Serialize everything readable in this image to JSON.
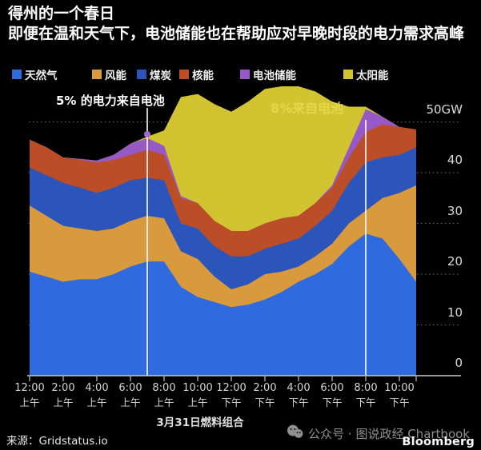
{
  "header": {
    "title": "得州的一个春日",
    "subtitle": "即便在温和天气下，电池储能也在帮助应对早晚时段的电力需求高峰"
  },
  "legend": {
    "items": [
      {
        "label": "天然气",
        "color": "#2f6bdf"
      },
      {
        "label": "风能",
        "color": "#d99a3d"
      },
      {
        "label": "煤炭",
        "color": "#2b55bb"
      },
      {
        "label": "核能",
        "color": "#bb4d27"
      },
      {
        "label": "电池储能",
        "color": "#9659c5"
      },
      {
        "label": "太阳能",
        "color": "#d2c430"
      }
    ]
  },
  "annotations": {
    "morning": "5% 的电力来自电池",
    "evening": "8%来自电池"
  },
  "y_axis": {
    "labels": [
      "50GW",
      "40",
      "30",
      "20",
      "10",
      "0"
    ],
    "values": [
      50,
      40,
      30,
      20,
      10,
      0
    ]
  },
  "x_axis": {
    "tick_labels": [
      {
        "time": "12:00",
        "period": "上午"
      },
      {
        "time": "2:00",
        "period": "上午"
      },
      {
        "time": "4:00",
        "period": "上午"
      },
      {
        "time": "6:00",
        "period": "上午"
      },
      {
        "time": "8:00",
        "period": "上午"
      },
      {
        "time": "10:00",
        "period": "上午"
      },
      {
        "time": "12:00",
        "period": "下午"
      },
      {
        "time": "2:00",
        "period": "下午"
      },
      {
        "time": "4:00",
        "period": "下午"
      },
      {
        "time": "6:00",
        "period": "下午"
      },
      {
        "time": "8:00",
        "period": "下午"
      },
      {
        "time": "10:00",
        "period": "下午"
      }
    ]
  },
  "footer": {
    "source": "来源：Gridstatus.io",
    "wechat": "公众号 · 图说政经 Chartbook",
    "brand": "Bloomberg"
  },
  "chart_data": {
    "type": "area",
    "stacked": true,
    "title": "3月31日燃料组合",
    "y_unit": "GW",
    "ylim": [
      0,
      50
    ],
    "y_ticks": [
      0,
      10,
      20,
      30,
      40,
      50
    ],
    "grid": "dotted horizontal",
    "legend_position": "top",
    "x_hours": [
      0,
      1,
      2,
      3,
      4,
      5,
      6,
      7,
      8,
      9,
      10,
      11,
      12,
      13,
      14,
      15,
      16,
      17,
      18,
      19,
      20,
      21,
      22,
      23
    ],
    "series": [
      {
        "name": "天然气",
        "color": "#2f6bdf",
        "values": [
          20.5,
          19.5,
          18.5,
          19,
          19,
          20,
          21.5,
          22.5,
          22.5,
          17.5,
          15.5,
          14.5,
          13.5,
          14,
          15,
          16.5,
          18.5,
          20,
          22,
          25.5,
          28,
          27,
          23,
          18.5
        ]
      },
      {
        "name": "风能",
        "color": "#d99a3d",
        "values": [
          13,
          12,
          11,
          10,
          9.5,
          9,
          9,
          9,
          8.5,
          7,
          7.5,
          5,
          3.5,
          4,
          5,
          4,
          3,
          3.5,
          4,
          4.5,
          4.5,
          8,
          13,
          19
        ]
      },
      {
        "name": "煤炭",
        "color": "#2b55bb",
        "values": [
          7.5,
          8,
          8.5,
          8,
          7.5,
          8,
          8,
          7.5,
          7.5,
          5.5,
          6,
          6,
          6.5,
          5.5,
          5,
          5.5,
          5.5,
          6,
          6.5,
          8,
          9.5,
          8,
          7.5,
          7.5
        ]
      },
      {
        "name": "核能",
        "color": "#bb4d27",
        "values": [
          5.5,
          5.5,
          5,
          5.5,
          6,
          5.5,
          5,
          5.5,
          5,
          5,
          5,
          5,
          5,
          5,
          5,
          5,
          4.5,
          4.5,
          4.5,
          5,
          6,
          6.5,
          5.5,
          3.5
        ]
      },
      {
        "name": "电池储能",
        "color": "#9659c5",
        "values": [
          0,
          0,
          0,
          0.2,
          0.4,
          1,
          2.2,
          2.3,
          1.8,
          0.4,
          0,
          0,
          0,
          0,
          0,
          0,
          0,
          0,
          0.5,
          2,
          4.5,
          1.5,
          0,
          0
        ]
      },
      {
        "name": "太阳能",
        "color": "#d2c430",
        "values": [
          0,
          0,
          0,
          0,
          0,
          0,
          0,
          0.3,
          3,
          19.5,
          21.5,
          23,
          23.5,
          25.5,
          26.5,
          26,
          25.5,
          22,
          16.5,
          8,
          0.5,
          0,
          0,
          0
        ]
      }
    ],
    "annotation_lines": [
      {
        "x_hour": 7,
        "label": "5% 的电力来自电池",
        "marker": "battery-dot"
      },
      {
        "x_hour": 20,
        "label": "8%来自电池"
      }
    ]
  }
}
